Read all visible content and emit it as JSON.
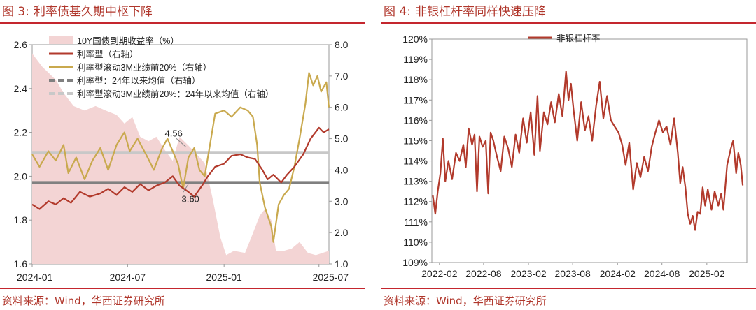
{
  "left": {
    "title_num": "图 3:",
    "title_text": "利率债基久期中枢下降",
    "source": "资料来源：Wind，华西证券研究所"
  },
  "right": {
    "title_num": "图 4:",
    "title_text": "非银杠杆率同样快速压降",
    "source": "资料来源：Wind，华西证券研究所"
  },
  "colors": {
    "accent": "#c4262e",
    "area": "#f3d4d4",
    "rate_line": "#b23a2c",
    "gold_line": "#c9a94e",
    "avg_dark": "#808080",
    "avg_light": "#c8c8c8"
  },
  "chart_data": [
    {
      "type": "line",
      "x_labels": [
        "2024-01",
        "2024-07",
        "2025-01",
        "2025-07"
      ],
      "x_dates": [
        "2024-01-01",
        "2024-07-01",
        "2025-01-01",
        "2025-07-01"
      ],
      "x_range": [
        "2024-01-01",
        "2025-07-20"
      ],
      "ylim_left": [
        1.6,
        2.6
      ],
      "yticks_left": [
        "1.6",
        "1.8",
        "2.0",
        "2.2",
        "2.4",
        "2.6"
      ],
      "ylim_right": [
        1.0,
        8.0
      ],
      "yticks_right": [
        "1.0",
        "2.0",
        "3.0",
        "4.0",
        "5.0",
        "6.0",
        "7.0",
        "8.0"
      ],
      "legend": [
        "10Y国债到期收益率（%）",
        "利率型（右轴）",
        "利率型滚动3M业绩前20%（右轴）",
        "利率型：24年以来均值（右轴）",
        "利率型滚动3M业绩前20%：24年以来均值（右轴）"
      ],
      "annotations": [
        "4.56",
        "3.60"
      ],
      "series": [
        {
          "name": "10Y国债到期收益率（%）",
          "axis": "left",
          "style": "area",
          "points": [
            [
              "2024-01-01",
              2.56
            ],
            [
              "2024-01-20",
              2.5
            ],
            [
              "2024-02-15",
              2.44
            ],
            [
              "2024-03-01",
              2.38
            ],
            [
              "2024-03-20",
              2.32
            ],
            [
              "2024-04-10",
              2.3
            ],
            [
              "2024-05-01",
              2.32
            ],
            [
              "2024-05-20",
              2.3
            ],
            [
              "2024-06-10",
              2.28
            ],
            [
              "2024-06-25",
              2.24
            ],
            [
              "2024-07-10",
              2.27
            ],
            [
              "2024-07-25",
              2.18
            ],
            [
              "2024-08-10",
              2.16
            ],
            [
              "2024-08-25",
              2.18
            ],
            [
              "2024-09-10",
              2.12
            ],
            [
              "2024-09-25",
              2.07
            ],
            [
              "2024-10-08",
              2.18
            ],
            [
              "2024-10-25",
              2.14
            ],
            [
              "2024-11-10",
              2.1
            ],
            [
              "2024-11-25",
              2.06
            ],
            [
              "2024-12-10",
              1.9
            ],
            [
              "2024-12-25",
              1.72
            ],
            [
              "2025-01-05",
              1.64
            ],
            [
              "2025-01-20",
              1.66
            ],
            [
              "2025-02-10",
              1.65
            ],
            [
              "2025-02-25",
              1.74
            ],
            [
              "2025-03-10",
              1.82
            ],
            [
              "2025-03-20",
              1.85
            ],
            [
              "2025-04-01",
              1.8
            ],
            [
              "2025-04-10",
              1.66
            ],
            [
              "2025-04-25",
              1.66
            ],
            [
              "2025-05-10",
              1.67
            ],
            [
              "2025-05-25",
              1.7
            ],
            [
              "2025-06-10",
              1.65
            ],
            [
              "2025-06-25",
              1.64
            ],
            [
              "2025-07-20",
              1.66
            ]
          ]
        },
        {
          "name": "利率型（右轴）",
          "axis": "right",
          "style": "line",
          "points": [
            [
              "2024-01-01",
              2.9
            ],
            [
              "2024-01-15",
              2.75
            ],
            [
              "2024-02-01",
              3.0
            ],
            [
              "2024-02-15",
              2.9
            ],
            [
              "2024-03-01",
              3.1
            ],
            [
              "2024-03-15",
              2.95
            ],
            [
              "2024-04-01",
              3.3
            ],
            [
              "2024-04-20",
              3.15
            ],
            [
              "2024-05-10",
              3.25
            ],
            [
              "2024-05-25",
              3.4
            ],
            [
              "2024-06-10",
              3.2
            ],
            [
              "2024-06-25",
              3.45
            ],
            [
              "2024-07-10",
              3.3
            ],
            [
              "2024-07-25",
              3.55
            ],
            [
              "2024-08-10",
              3.35
            ],
            [
              "2024-08-25",
              3.5
            ],
            [
              "2024-09-10",
              3.6
            ],
            [
              "2024-09-25",
              3.8
            ],
            [
              "2024-10-08",
              3.5
            ],
            [
              "2024-10-25",
              3.3
            ],
            [
              "2024-11-05",
              3.15
            ],
            [
              "2024-11-20",
              3.5
            ],
            [
              "2024-12-01",
              3.8
            ],
            [
              "2024-12-15",
              4.1
            ],
            [
              "2025-01-01",
              4.2
            ],
            [
              "2025-01-15",
              4.45
            ],
            [
              "2025-02-01",
              4.5
            ],
            [
              "2025-02-15",
              4.4
            ],
            [
              "2025-03-01",
              4.35
            ],
            [
              "2025-03-15",
              4.0
            ],
            [
              "2025-03-25",
              3.7
            ],
            [
              "2025-04-05",
              3.85
            ],
            [
              "2025-04-20",
              3.6
            ],
            [
              "2025-05-01",
              3.85
            ],
            [
              "2025-05-15",
              4.1
            ],
            [
              "2025-06-01",
              4.5
            ],
            [
              "2025-06-15",
              5.0
            ],
            [
              "2025-07-01",
              5.35
            ],
            [
              "2025-07-10",
              5.2
            ],
            [
              "2025-07-20",
              5.3
            ]
          ]
        },
        {
          "name": "利率型滚动3M业绩前20%（右轴）",
          "axis": "right",
          "style": "line",
          "points": [
            [
              "2024-01-01",
              4.5
            ],
            [
              "2024-01-15",
              4.1
            ],
            [
              "2024-02-01",
              4.6
            ],
            [
              "2024-02-15",
              4.3
            ],
            [
              "2024-03-01",
              4.8
            ],
            [
              "2024-03-10",
              3.9
            ],
            [
              "2024-03-25",
              4.4
            ],
            [
              "2024-04-10",
              3.7
            ],
            [
              "2024-04-25",
              4.3
            ],
            [
              "2024-05-10",
              4.7
            ],
            [
              "2024-05-25",
              4.0
            ],
            [
              "2024-06-10",
              4.8
            ],
            [
              "2024-06-25",
              5.2
            ],
            [
              "2024-07-05",
              4.6
            ],
            [
              "2024-07-20",
              5.0
            ],
            [
              "2024-08-05",
              4.5
            ],
            [
              "2024-08-20",
              4.0
            ],
            [
              "2024-09-05",
              4.7
            ],
            [
              "2024-09-15",
              5.0
            ],
            [
              "2024-09-25",
              4.6
            ],
            [
              "2024-10-05",
              4.2
            ],
            [
              "2024-10-15",
              3.4
            ],
            [
              "2024-10-25",
              4.4
            ],
            [
              "2024-11-05",
              4.7
            ],
            [
              "2024-11-15",
              4.0
            ],
            [
              "2024-11-25",
              3.8
            ],
            [
              "2024-12-05",
              4.8
            ],
            [
              "2024-12-15",
              5.8
            ],
            [
              "2025-01-01",
              5.9
            ],
            [
              "2025-01-15",
              5.7
            ],
            [
              "2025-02-01",
              6.0
            ],
            [
              "2025-02-15",
              5.9
            ],
            [
              "2025-02-25",
              5.7
            ],
            [
              "2025-03-05",
              4.8
            ],
            [
              "2025-03-10",
              3.6
            ],
            [
              "2025-03-20",
              2.8
            ],
            [
              "2025-04-01",
              2.2
            ],
            [
              "2025-04-05",
              1.7
            ],
            [
              "2025-04-15",
              2.9
            ],
            [
              "2025-04-25",
              3.2
            ],
            [
              "2025-05-05",
              3.4
            ],
            [
              "2025-05-15",
              4.1
            ],
            [
              "2025-05-25",
              5.0
            ],
            [
              "2025-06-05",
              6.1
            ],
            [
              "2025-06-12",
              7.1
            ],
            [
              "2025-06-20",
              6.7
            ],
            [
              "2025-06-28",
              7.0
            ],
            [
              "2025-07-05",
              6.5
            ],
            [
              "2025-07-15",
              6.8
            ],
            [
              "2025-07-20",
              6.0
            ]
          ]
        },
        {
          "name": "利率型：24年以来均值（右轴）",
          "axis": "right",
          "style": "hline",
          "value": 3.6
        },
        {
          "name": "利率型滚动3M业绩前20%：24年以来均值（右轴）",
          "axis": "right",
          "style": "hline",
          "value": 4.56
        }
      ]
    },
    {
      "type": "line",
      "x_labels": [
        "2022-02",
        "2022-08",
        "2023-02",
        "2023-08",
        "2024-02",
        "2024-08",
        "2025-02"
      ],
      "x_dates": [
        "2022-02-01",
        "2022-08-01",
        "2023-02-01",
        "2023-08-01",
        "2024-02-01",
        "2024-08-01",
        "2025-02-01"
      ],
      "x_range": [
        "2022-01-01",
        "2025-07-15"
      ],
      "ylim": [
        109,
        120
      ],
      "yticks": [
        "109%",
        "110%",
        "111%",
        "112%",
        "113%",
        "114%",
        "115%",
        "116%",
        "117%",
        "118%",
        "119%",
        "120%"
      ],
      "legend": [
        "非银杠杆率"
      ],
      "series": [
        {
          "name": "非银杠杆率",
          "points": [
            [
              "2022-01-05",
              112.3
            ],
            [
              "2022-01-15",
              111.4
            ],
            [
              "2022-01-25",
              112.5
            ],
            [
              "2022-02-05",
              113.4
            ],
            [
              "2022-02-15",
              115.1
            ],
            [
              "2022-02-25",
              113.0
            ],
            [
              "2022-03-10",
              114.0
            ],
            [
              "2022-03-25",
              113.1
            ],
            [
              "2022-04-10",
              114.4
            ],
            [
              "2022-04-25",
              114.0
            ],
            [
              "2022-05-10",
              114.8
            ],
            [
              "2022-05-20",
              113.7
            ],
            [
              "2022-06-01",
              115.6
            ],
            [
              "2022-06-15",
              114.8
            ],
            [
              "2022-06-25",
              115.3
            ],
            [
              "2022-07-05",
              112.5
            ],
            [
              "2022-07-15",
              115.2
            ],
            [
              "2022-07-28",
              114.7
            ],
            [
              "2022-08-10",
              115.0
            ],
            [
              "2022-08-20",
              112.4
            ],
            [
              "2022-08-30",
              115.4
            ],
            [
              "2022-09-10",
              115.0
            ],
            [
              "2022-09-25",
              114.2
            ],
            [
              "2022-10-10",
              113.5
            ],
            [
              "2022-10-25",
              115.2
            ],
            [
              "2022-11-10",
              114.6
            ],
            [
              "2022-11-25",
              113.7
            ],
            [
              "2022-12-10",
              115.3
            ],
            [
              "2022-12-25",
              114.4
            ],
            [
              "2023-01-10",
              116.1
            ],
            [
              "2023-01-25",
              114.9
            ],
            [
              "2023-02-10",
              116.4
            ],
            [
              "2023-02-25",
              114.3
            ],
            [
              "2023-03-10",
              117.2
            ],
            [
              "2023-03-20",
              114.5
            ],
            [
              "2023-04-05",
              116.4
            ],
            [
              "2023-04-20",
              115.8
            ],
            [
              "2023-05-05",
              116.9
            ],
            [
              "2023-05-20",
              115.9
            ],
            [
              "2023-06-05",
              117.3
            ],
            [
              "2023-06-20",
              116.2
            ],
            [
              "2023-07-05",
              118.4
            ],
            [
              "2023-07-15",
              117.0
            ],
            [
              "2023-07-25",
              117.8
            ],
            [
              "2023-08-05",
              116.5
            ],
            [
              "2023-08-20",
              115.0
            ],
            [
              "2023-09-05",
              116.9
            ],
            [
              "2023-09-20",
              115.5
            ],
            [
              "2023-10-05",
              116.2
            ],
            [
              "2023-10-20",
              115.0
            ],
            [
              "2023-11-05",
              116.7
            ],
            [
              "2023-11-20",
              117.9
            ],
            [
              "2023-12-05",
              116.1
            ],
            [
              "2023-12-20",
              117.2
            ],
            [
              "2024-01-05",
              116.0
            ],
            [
              "2024-01-20",
              115.7
            ],
            [
              "2024-02-05",
              115.4
            ],
            [
              "2024-02-20",
              114.8
            ],
            [
              "2024-03-05",
              113.8
            ],
            [
              "2024-03-20",
              114.9
            ],
            [
              "2024-04-05",
              112.6
            ],
            [
              "2024-04-20",
              113.9
            ],
            [
              "2024-05-05",
              113.2
            ],
            [
              "2024-05-20",
              114.2
            ],
            [
              "2024-06-05",
              113.5
            ],
            [
              "2024-06-20",
              114.7
            ],
            [
              "2024-07-05",
              115.4
            ],
            [
              "2024-07-20",
              116.0
            ],
            [
              "2024-08-05",
              115.4
            ],
            [
              "2024-08-20",
              115.7
            ],
            [
              "2024-09-05",
              114.8
            ],
            [
              "2024-09-20",
              116.1
            ],
            [
              "2024-10-05",
              114.4
            ],
            [
              "2024-10-15",
              112.9
            ],
            [
              "2024-10-25",
              113.7
            ],
            [
              "2024-11-05",
              112.7
            ],
            [
              "2024-11-15",
              111.4
            ],
            [
              "2024-11-25",
              110.9
            ],
            [
              "2024-12-05",
              111.3
            ],
            [
              "2024-12-15",
              110.6
            ],
            [
              "2024-12-25",
              111.5
            ],
            [
              "2025-01-05",
              111.4
            ],
            [
              "2025-01-15",
              112.7
            ],
            [
              "2025-01-25",
              111.8
            ],
            [
              "2025-02-05",
              112.6
            ],
            [
              "2025-02-20",
              111.6
            ],
            [
              "2025-03-05",
              112.5
            ],
            [
              "2025-03-20",
              111.8
            ],
            [
              "2025-04-01",
              112.4
            ],
            [
              "2025-04-10",
              111.6
            ],
            [
              "2025-04-25",
              113.8
            ],
            [
              "2025-05-10",
              114.6
            ],
            [
              "2025-05-20",
              115.0
            ],
            [
              "2025-06-01",
              113.4
            ],
            [
              "2025-06-10",
              114.4
            ],
            [
              "2025-06-20",
              113.8
            ],
            [
              "2025-06-28",
              112.8
            ]
          ]
        }
      ]
    }
  ]
}
